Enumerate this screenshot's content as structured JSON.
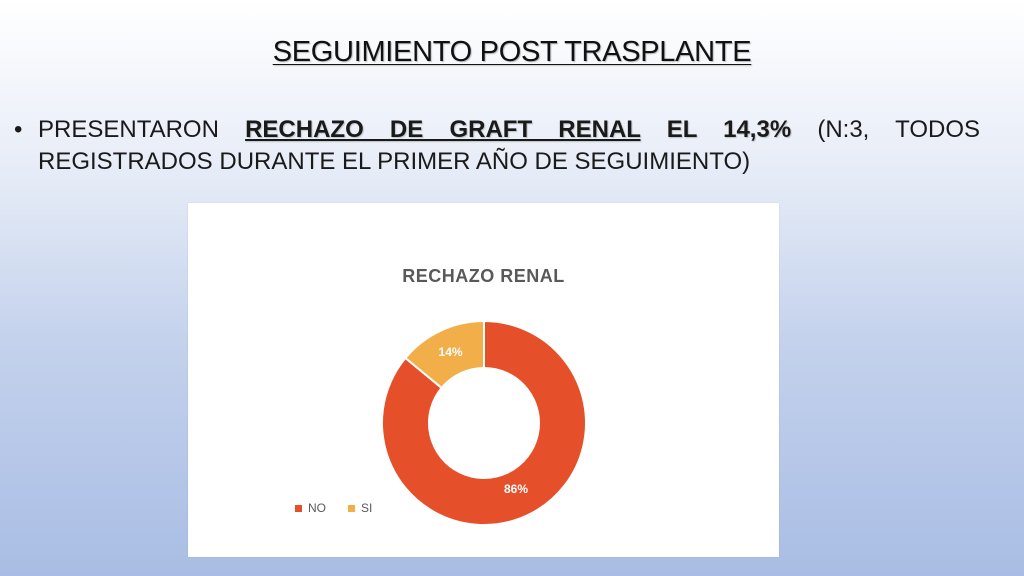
{
  "slide": {
    "title": "SEGUIMIENTO POST TRASPLANTE"
  },
  "bullet": {
    "symbol": "•",
    "text_before": "PRESENTARON ",
    "emphasis": "RECHAZO DE GRAFT RENAL",
    "text_bold": " EL 14,3%",
    "text_after": " (N:3, TODOS REGISTRADOS DURANTE EL PRIMER AÑO DE SEGUIMIENTO)"
  },
  "chart_data": {
    "type": "pie",
    "donut": true,
    "title": "RECHAZO RENAL",
    "categories": [
      "NO",
      "SI"
    ],
    "values": [
      86,
      14
    ],
    "labels": [
      "86%",
      "14%"
    ],
    "colors": [
      "#E5502A",
      "#F2AE48"
    ],
    "legend": "bottom-left"
  }
}
